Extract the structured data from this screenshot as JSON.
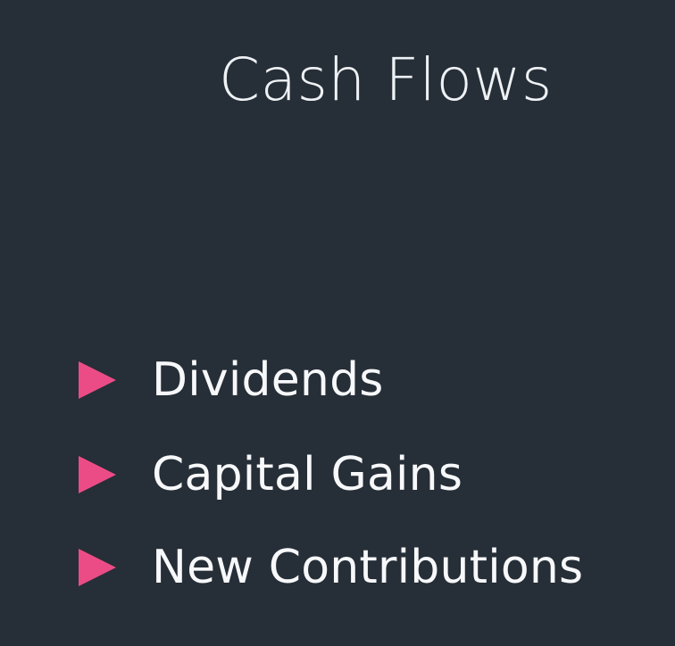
{
  "slide": {
    "title": "Cash Flows",
    "items": [
      {
        "label": "Dividends",
        "icon": "triangle-right-icon"
      },
      {
        "label": "Capital Gains",
        "icon": "triangle-right-icon"
      },
      {
        "label": "New Contributions",
        "icon": "triangle-right-icon"
      }
    ],
    "colors": {
      "background": "#262e37",
      "bullet_accent": "#ec4c86",
      "text": "#f3f5f7"
    }
  }
}
